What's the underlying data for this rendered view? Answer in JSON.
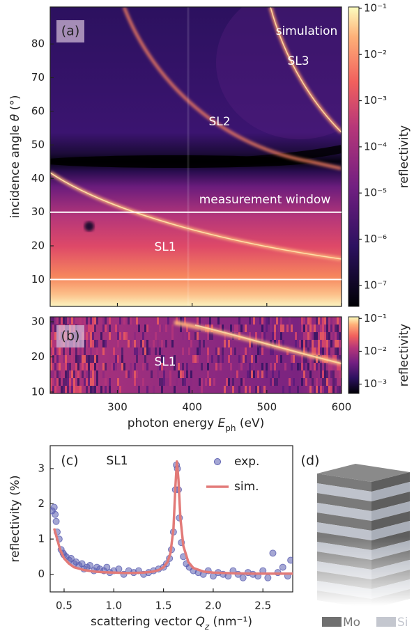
{
  "chart_data": [
    {
      "type": "heatmap",
      "panel_label": "(a)",
      "ylabel": [
        "incidence angle ",
        "θ",
        " (°)"
      ],
      "xlim": [
        210,
        600
      ],
      "xticks": [
        300,
        400,
        500,
        600
      ],
      "ylim": [
        2,
        91
      ],
      "yticks": [
        10,
        20,
        30,
        40,
        50,
        60,
        70,
        80
      ],
      "measurement_window": [
        10,
        30
      ],
      "annotations": [
        "simulation",
        "SL3",
        "SL2",
        "measurement window",
        "SL1"
      ],
      "colorbar": {
        "label": "reflectivity",
        "log": true,
        "lim": [
          3.5e-08,
          0.107
        ],
        "ticks": [
          {
            "value": 1e-07,
            "label": "10⁻⁷"
          },
          {
            "value": 1e-06,
            "label": "10⁻⁶"
          },
          {
            "value": 1e-05,
            "label": "10⁻⁵"
          },
          {
            "value": 0.0001,
            "label": "10⁻⁴"
          },
          {
            "value": 0.001,
            "label": "10⁻³"
          },
          {
            "value": 0.01,
            "label": "10⁻²"
          },
          {
            "value": 0.1,
            "label": "10⁻¹"
          }
        ]
      }
    },
    {
      "type": "heatmap",
      "panel_label": "(b)",
      "xlabel": [
        "photon energy ",
        "E",
        "ph",
        " (eV)"
      ],
      "xlim": [
        210,
        600
      ],
      "xticks": [
        300,
        400,
        500,
        600
      ],
      "ylim": [
        9.6,
        31.4
      ],
      "yticks": [
        10,
        20,
        30
      ],
      "annotations": [
        "SL1"
      ],
      "colorbar": {
        "label": "reflectivity",
        "log": true,
        "lim": [
          0.00052,
          0.112
        ],
        "ticks": [
          {
            "value": 0.001,
            "label": "10⁻³"
          },
          {
            "value": 0.01,
            "label": "10⁻²"
          },
          {
            "value": 0.1,
            "label": "10⁻¹"
          }
        ]
      }
    },
    {
      "type": "scatter",
      "panel_label": "(c)",
      "xlabel": [
        "scattering vector ",
        "Q",
        "z",
        " (nm⁻¹)"
      ],
      "ylabel": "reflectivity (%)",
      "xlim": [
        0.36,
        2.8
      ],
      "xticks": [
        0.5,
        {
          "value": 1,
          "label": "1.0"
        },
        1.5,
        {
          "value": 2,
          "label": "2.0"
        },
        2.5
      ],
      "ylim": [
        -0.5,
        3.65
      ],
      "yticks": [
        0,
        1,
        2,
        3
      ],
      "annotations": [
        "SL1"
      ],
      "series": [
        {
          "name": "exp.",
          "style": "markers",
          "color": "#5b5fb0",
          "x": [
            0.38,
            0.4,
            0.41,
            0.42,
            0.43,
            0.45,
            0.47,
            0.49,
            0.5,
            0.52,
            0.55,
            0.57,
            0.6,
            0.62,
            0.65,
            0.68,
            0.7,
            0.73,
            0.76,
            0.8,
            0.83,
            0.86,
            0.9,
            0.93,
            0.96,
            1.0,
            1.05,
            1.1,
            1.15,
            1.2,
            1.25,
            1.3,
            1.35,
            1.4,
            1.45,
            1.5,
            1.53,
            1.56,
            1.58,
            1.6,
            1.62,
            1.63,
            1.64,
            1.65,
            1.66,
            1.68,
            1.7,
            1.73,
            1.76,
            1.8,
            1.85,
            1.9,
            1.95,
            2.0,
            2.05,
            2.1,
            2.15,
            2.2,
            2.25,
            2.3,
            2.35,
            2.4,
            2.45,
            2.5,
            2.55,
            2.6,
            2.65,
            2.7,
            2.75,
            2.78
          ],
          "values": [
            1.8,
            1.9,
            1.7,
            1.5,
            1.2,
            1.0,
            0.7,
            0.6,
            0.55,
            0.5,
            0.4,
            0.45,
            0.3,
            0.35,
            0.25,
            0.3,
            0.15,
            0.2,
            0.25,
            0.1,
            0.2,
            0.15,
            0.1,
            0.2,
            0.05,
            0.1,
            0.15,
            0.0,
            0.1,
            0.05,
            0.1,
            0.0,
            0.05,
            0.1,
            0.15,
            0.2,
            0.3,
            0.45,
            0.7,
            1.2,
            2.4,
            3.1,
            3.0,
            2.4,
            1.6,
            0.9,
            0.5,
            0.3,
            0.2,
            0.1,
            0.05,
            0.0,
            0.1,
            -0.05,
            0.05,
            0.0,
            -0.05,
            0.1,
            0.0,
            -0.1,
            0.05,
            0.0,
            -0.05,
            0.1,
            -0.1,
            0.6,
            0.05,
            0.2,
            -0.05,
            0.4
          ]
        },
        {
          "name": "sim.",
          "style": "line",
          "color": "#e27a78",
          "x": [
            0.4,
            0.43,
            0.46,
            0.5,
            0.55,
            0.6,
            0.7,
            0.8,
            0.9,
            1.0,
            1.1,
            1.2,
            1.3,
            1.4,
            1.45,
            1.5,
            1.54,
            1.57,
            1.6,
            1.62,
            1.635,
            1.65,
            1.67,
            1.7,
            1.75,
            1.8,
            1.9,
            2.0,
            2.2,
            2.4,
            2.6,
            2.8
          ],
          "values": [
            1.3,
            1.0,
            0.7,
            0.45,
            0.3,
            0.2,
            0.12,
            0.08,
            0.06,
            0.05,
            0.04,
            0.04,
            0.05,
            0.08,
            0.12,
            0.2,
            0.35,
            0.6,
            1.3,
            2.5,
            3.2,
            2.7,
            1.6,
            0.8,
            0.35,
            0.18,
            0.08,
            0.05,
            0.03,
            0.02,
            0.02,
            0.02
          ]
        }
      ]
    }
  ],
  "diagram": {
    "label": "(d)",
    "legend": [
      "Mo",
      "Si"
    ]
  }
}
